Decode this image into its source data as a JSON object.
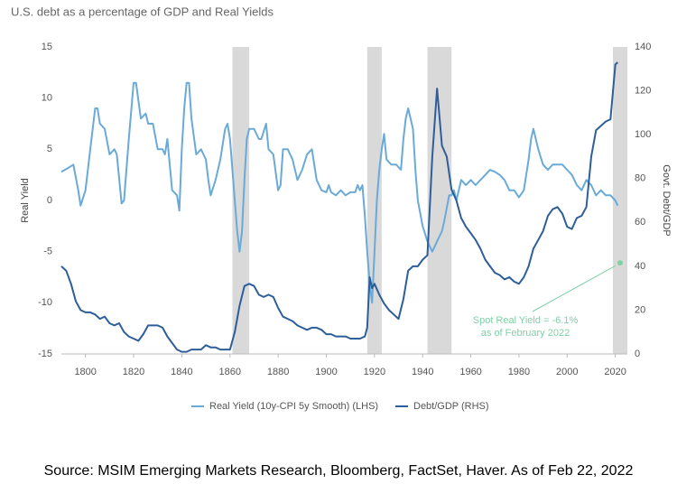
{
  "chart_data": {
    "type": "line",
    "title": "U.S. debt as a percentage of GDP and Real Yields",
    "source": "Source: MSIM Emerging Markets Research, Bloomberg, FactSet, Haver. As of Feb 22, 2022",
    "y_label": "Real Yield",
    "y2_label": "Govt. Debt/GDP",
    "xlim": [
      1790,
      2025
    ],
    "xticks": [
      1800,
      1820,
      1840,
      1860,
      1880,
      1900,
      1920,
      1940,
      1960,
      1980,
      2000,
      2020
    ],
    "ylim": [
      -15,
      15
    ],
    "yticks": [
      -15,
      -10,
      -5,
      0,
      5,
      10,
      15
    ],
    "y2lim": [
      0,
      140
    ],
    "y2ticks": [
      0,
      20,
      40,
      60,
      80,
      100,
      120,
      140
    ],
    "grid": false,
    "legend": "bottom",
    "shaded_periods": [
      [
        1861,
        1868
      ],
      [
        1917,
        1923
      ],
      [
        1942,
        1952
      ],
      [
        2019,
        2025
      ]
    ],
    "shade_color": "#d9d9d9",
    "series": [
      {
        "name": "Real Yield (10y-CPI 5y Smooth) (LHS)",
        "color": "#6aaad8",
        "axis": "y",
        "x": [
          1790,
          1793,
          1795,
          1797,
          1798,
          1800,
          1802,
          1804,
          1805,
          1806,
          1808,
          1810,
          1812,
          1813,
          1815,
          1816,
          1818,
          1820,
          1821,
          1823,
          1825,
          1826,
          1828,
          1830,
          1832,
          1833,
          1834,
          1836,
          1838,
          1839,
          1840,
          1841,
          1842,
          1843,
          1844,
          1846,
          1848,
          1850,
          1851,
          1852,
          1854,
          1856,
          1858,
          1859,
          1860,
          1862,
          1863,
          1864,
          1865,
          1866,
          1867,
          1868,
          1870,
          1872,
          1873,
          1875,
          1876,
          1878,
          1880,
          1881,
          1882,
          1884,
          1886,
          1888,
          1890,
          1892,
          1894,
          1896,
          1898,
          1900,
          1901,
          1902,
          1904,
          1906,
          1908,
          1910,
          1912,
          1913,
          1914,
          1915,
          1916,
          1917,
          1918,
          1919,
          1920,
          1921,
          1922,
          1923,
          1924,
          1925,
          1927,
          1929,
          1931,
          1932,
          1933,
          1934,
          1936,
          1937,
          1938,
          1940,
          1942,
          1944,
          1946,
          1948,
          1949,
          1951,
          1952,
          1953,
          1954,
          1956,
          1958,
          1960,
          1962,
          1964,
          1966,
          1968,
          1970,
          1972,
          1974,
          1976,
          1978,
          1980,
          1982,
          1984,
          1985,
          1986,
          1988,
          1990,
          1992,
          1994,
          1996,
          1998,
          2000,
          2002,
          2004,
          2006,
          2008,
          2010,
          2012,
          2014,
          2016,
          2018,
          2020,
          2021
        ],
        "values": [
          2.8,
          3.2,
          3.5,
          1,
          -0.5,
          1,
          5,
          9,
          9,
          7.5,
          7,
          4.5,
          5,
          4.5,
          -0.3,
          0,
          6,
          11.5,
          11.5,
          8,
          8.5,
          7.5,
          7.5,
          5,
          5,
          4.5,
          6,
          1,
          0.5,
          -1,
          5,
          9,
          11.5,
          11.5,
          8,
          4.5,
          5,
          4,
          2,
          0.5,
          2,
          4,
          7,
          7.5,
          6,
          0,
          -3,
          -5,
          -3,
          2,
          6,
          7,
          7,
          6,
          6,
          7.5,
          5,
          4.5,
          1,
          1.5,
          5,
          5,
          4,
          2,
          3,
          4.5,
          5,
          2,
          1,
          0.8,
          1.5,
          0.8,
          0.5,
          1,
          0.5,
          0.8,
          0.8,
          1.5,
          1,
          1.5,
          -1.5,
          -5,
          -8,
          -10,
          -5,
          0,
          3,
          5,
          6.5,
          4,
          3.5,
          3.5,
          3,
          6,
          8,
          9,
          7,
          3,
          0,
          -2.5,
          -4,
          -5,
          -4,
          -3,
          -2,
          0.5,
          0.5,
          1,
          0,
          2,
          1.5,
          2,
          1.5,
          2,
          2.5,
          3,
          2.8,
          2.5,
          2,
          1,
          1,
          0.3,
          1,
          4,
          6,
          7,
          5,
          3.5,
          3,
          3.5,
          3.5,
          3.5,
          3,
          2.5,
          1.5,
          1,
          2,
          1.5,
          0.5,
          1,
          0.5,
          0.5,
          0,
          -0.5
        ]
      },
      {
        "name": "Debt/GDP (RHS)",
        "color": "#2e5e9a",
        "axis": "y2",
        "x": [
          1790,
          1792,
          1794,
          1796,
          1798,
          1800,
          1802,
          1804,
          1806,
          1808,
          1810,
          1812,
          1814,
          1816,
          1818,
          1820,
          1822,
          1824,
          1826,
          1828,
          1830,
          1832,
          1834,
          1836,
          1838,
          1840,
          1842,
          1844,
          1846,
          1848,
          1850,
          1852,
          1854,
          1856,
          1858,
          1860,
          1862,
          1864,
          1866,
          1868,
          1870,
          1872,
          1874,
          1876,
          1878,
          1880,
          1882,
          1884,
          1886,
          1888,
          1890,
          1892,
          1894,
          1896,
          1898,
          1900,
          1902,
          1904,
          1906,
          1908,
          1910,
          1912,
          1914,
          1916,
          1917,
          1918,
          1919,
          1920,
          1922,
          1924,
          1926,
          1928,
          1930,
          1932,
          1934,
          1936,
          1938,
          1940,
          1942,
          1944,
          1946,
          1948,
          1950,
          1952,
          1954,
          1956,
          1958,
          1960,
          1962,
          1964,
          1966,
          1968,
          1970,
          1972,
          1974,
          1976,
          1978,
          1980,
          1982,
          1984,
          1986,
          1988,
          1990,
          1992,
          1994,
          1996,
          1998,
          2000,
          2002,
          2004,
          2006,
          2008,
          2010,
          2012,
          2014,
          2016,
          2018,
          2020,
          2021
        ],
        "values": [
          40,
          38,
          32,
          24,
          20,
          19,
          19,
          18,
          16,
          17,
          14,
          13,
          14,
          10,
          8,
          7,
          6,
          9,
          13,
          13,
          13,
          12,
          8,
          5,
          2,
          1,
          1,
          2,
          2,
          2,
          4,
          3,
          3,
          2,
          2,
          2,
          10,
          22,
          31,
          32,
          31,
          27,
          26,
          27,
          26,
          21,
          17,
          16,
          15,
          13,
          12,
          11,
          12,
          12,
          11,
          9,
          9,
          8,
          8,
          8,
          7,
          7,
          7,
          8,
          12,
          35,
          30,
          32,
          27,
          23,
          20,
          18,
          16,
          25,
          38,
          40,
          40,
          43,
          45,
          90,
          121,
          95,
          90,
          75,
          70,
          62,
          58,
          55,
          52,
          48,
          43,
          40,
          37,
          36,
          34,
          35,
          33,
          32,
          35,
          40,
          48,
          52,
          56,
          63,
          66,
          67,
          64,
          58,
          57,
          62,
          63,
          67,
          90,
          102,
          104,
          106,
          107,
          132,
          133
        ]
      }
    ],
    "annotations": [
      {
        "text": [
          "Spot Real Yield = -6.1%",
          "as of February 2022"
        ],
        "x": 2022,
        "y": -6.1,
        "color": "#7fd1a8"
      }
    ]
  }
}
